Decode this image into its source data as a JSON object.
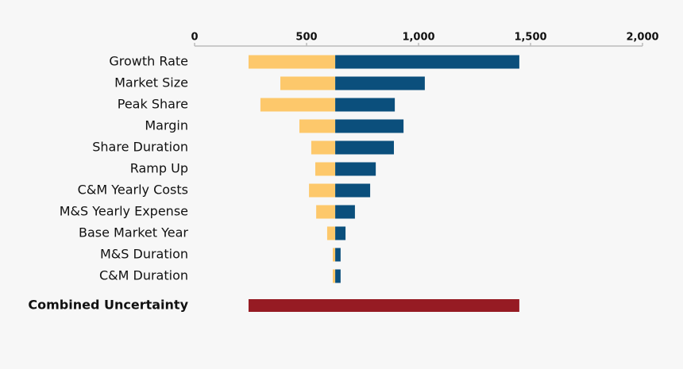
{
  "chart_data": {
    "type": "tornado",
    "categories": [
      "Growth Rate",
      "Market Size",
      "Peak Share",
      "Margin",
      "Share Duration",
      "Ramp Up",
      "C&M Yearly Costs",
      "M&S Yearly Expense",
      "Base Market Year",
      "M&S Duration",
      "C&M Duration"
    ],
    "base": 628,
    "low": [
      241,
      383,
      294,
      468,
      521,
      539,
      511,
      543,
      592,
      617,
      617
    ],
    "high": [
      1450,
      1028,
      894,
      933,
      890,
      809,
      784,
      716,
      674,
      652,
      652
    ],
    "low_color": "#fdc86b",
    "high_color": "#0b4f7c",
    "combined": {
      "label": "Combined Uncertainty",
      "low": 241,
      "high": 1450,
      "color": "#961b23"
    },
    "xlim": [
      0,
      2000
    ],
    "xticks": [
      0,
      500,
      {
        "value": 1000,
        "label": "1,000"
      },
      {
        "value": 1500,
        "label": "1,500"
      },
      {
        "value": 2000,
        "label": "2,000"
      }
    ]
  }
}
